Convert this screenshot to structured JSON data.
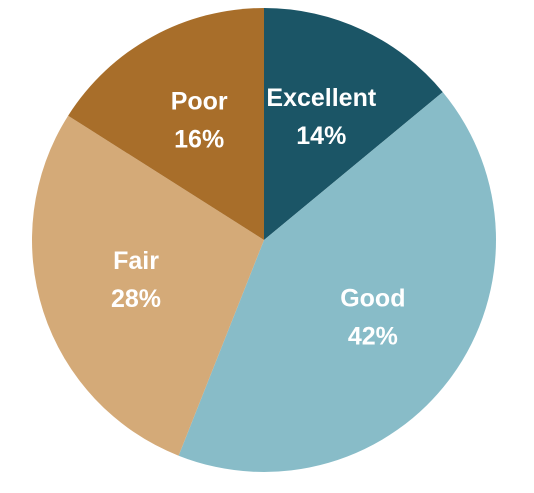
{
  "chart_data": {
    "type": "pie",
    "categories": [
      "Excellent",
      "Good",
      "Fair",
      "Poor"
    ],
    "values": [
      14,
      42,
      28,
      16
    ],
    "value_labels": [
      "14%",
      "42%",
      "28%",
      "16%"
    ],
    "colors": [
      "#1b5566",
      "#88bcc8",
      "#d4aa78",
      "#a86e2a"
    ]
  }
}
